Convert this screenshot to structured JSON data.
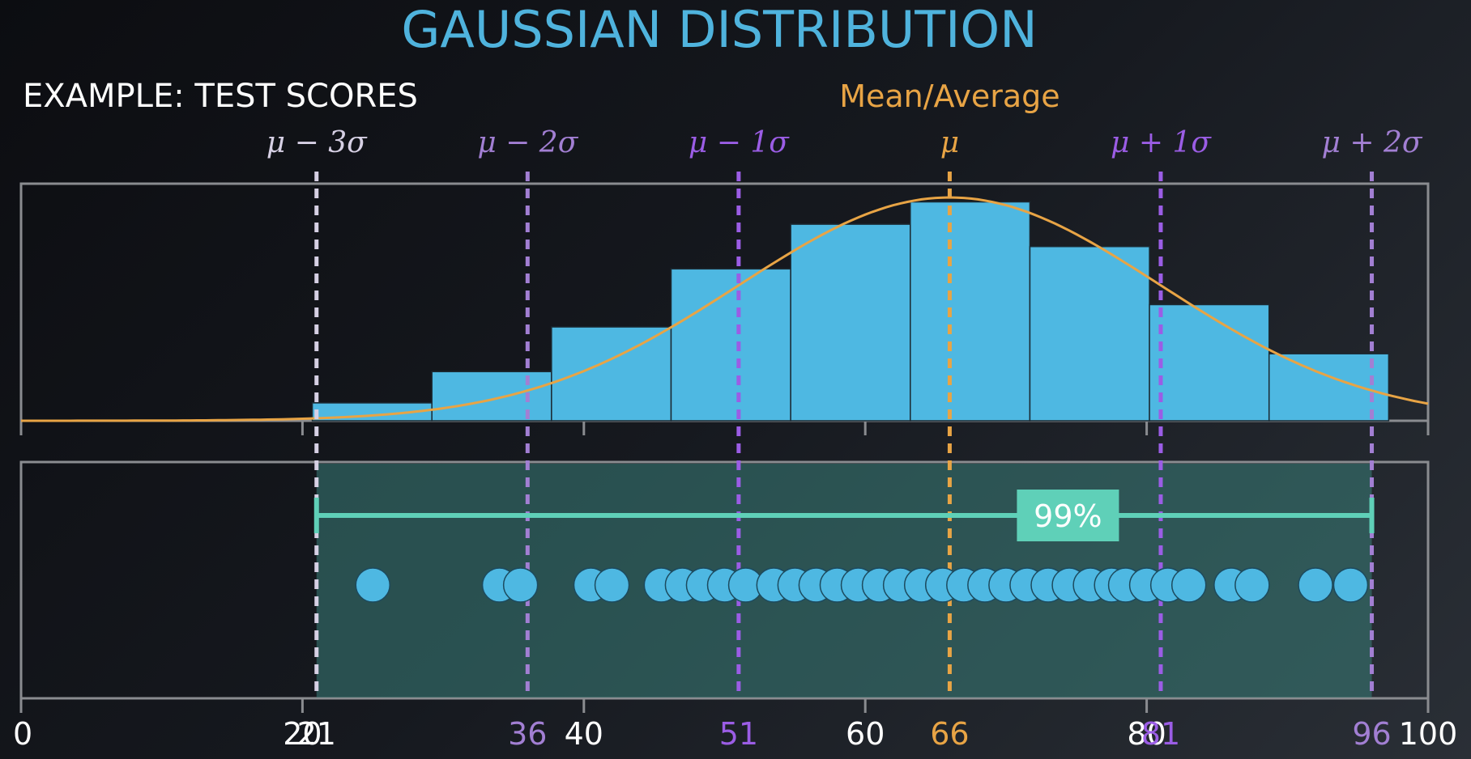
{
  "title": "GAUSSIAN DISTRIBUTION",
  "subtitle": "EXAMPLE: TEST SCORES",
  "colors": {
    "bar": "#4eb8e2",
    "curve": "#e8a445",
    "mean": "#e8a445",
    "sigma1": "#9b5de5",
    "sigma2": "#a27fd3",
    "sigma3": "#d6d0e4",
    "range_band": "#3a7f7a",
    "range_line": "#5fd0b8",
    "frame": "#8a8c90",
    "tick_text": "#ffffff"
  },
  "chart_data": {
    "type": "bar",
    "x_range": [
      0,
      100
    ],
    "mean_label": "Mean/Average",
    "histogram": {
      "bin_edges": [
        20.7,
        29.2,
        37.7,
        46.2,
        54.7,
        63.2,
        71.7,
        80.2,
        88.7,
        97.2
      ],
      "values": [
        4,
        11,
        21,
        34,
        44,
        49,
        39,
        26,
        15
      ]
    },
    "curve": {
      "mean": 66,
      "sd": 15,
      "peak_value": 50
    },
    "sigma_lines": [
      {
        "label": "μ − 3σ",
        "value": 21,
        "color_key": "sigma3"
      },
      {
        "label": "μ − 2σ",
        "value": 36,
        "color_key": "sigma2"
      },
      {
        "label": "μ − 1σ",
        "value": 51,
        "color_key": "sigma1"
      },
      {
        "label": "μ",
        "value": 66,
        "color_key": "mean"
      },
      {
        "label": "μ + 1σ",
        "value": 81,
        "color_key": "sigma1"
      },
      {
        "label": "μ + 2σ",
        "value": 96,
        "color_key": "sigma2"
      }
    ],
    "x_ticks": [
      0,
      20,
      40,
      60,
      80,
      100
    ],
    "axis_labels": [
      {
        "text": "0",
        "value": 0,
        "color_key": "tick_text"
      },
      {
        "text": "20",
        "value": 20,
        "color_key": "tick_text"
      },
      {
        "text": "21",
        "value": 21,
        "color_key": "tick_text"
      },
      {
        "text": "36",
        "value": 36,
        "color_key": "sigma2"
      },
      {
        "text": "40",
        "value": 40,
        "color_key": "tick_text"
      },
      {
        "text": "51",
        "value": 51,
        "color_key": "sigma1"
      },
      {
        "text": "60",
        "value": 60,
        "color_key": "tick_text"
      },
      {
        "text": "66",
        "value": 66,
        "color_key": "mean"
      },
      {
        "text": "80",
        "value": 80,
        "color_key": "tick_text"
      },
      {
        "text": "81",
        "value": 81,
        "color_key": "sigma1"
      },
      {
        "text": "96",
        "value": 96,
        "color_key": "sigma2"
      },
      {
        "text": "100",
        "value": 100,
        "color_key": "tick_text"
      }
    ],
    "range": {
      "from": 21,
      "to": 96,
      "label": "99%"
    },
    "scores": [
      25,
      34,
      35.5,
      40.5,
      42,
      45.5,
      47,
      48.5,
      50,
      51.5,
      53.5,
      55,
      56.5,
      58,
      59.5,
      61,
      62.5,
      64,
      65.5,
      67,
      68.5,
      70,
      71.5,
      73,
      74.5,
      76,
      77.5,
      78.5,
      80,
      81.5,
      83,
      86,
      87.5,
      92,
      94.5
    ]
  }
}
